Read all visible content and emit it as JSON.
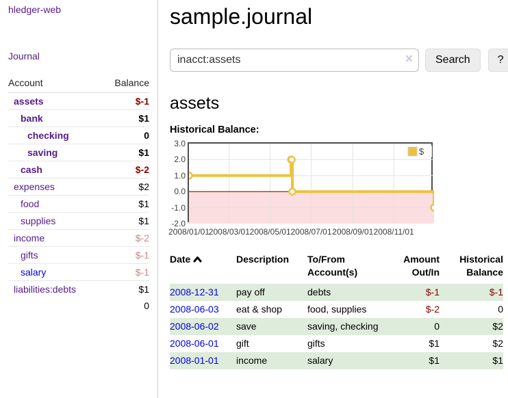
{
  "sidebar": {
    "brand": "hledger-web",
    "nav": {
      "journal_label": "Journal"
    },
    "accounts_table": {
      "headers": {
        "account": "Account",
        "balance": "Balance"
      },
      "rows": [
        {
          "name": "assets",
          "indent": 1,
          "bold": true,
          "balance": "$-1",
          "balance_style": "neg-strong"
        },
        {
          "name": "bank",
          "indent": 2,
          "bold": true,
          "balance": "$1"
        },
        {
          "name": "checking",
          "indent": 3,
          "bold": true,
          "balance": "0"
        },
        {
          "name": "saving",
          "indent": 3,
          "bold": true,
          "balance": "$1"
        },
        {
          "name": "cash",
          "indent": 2,
          "bold": true,
          "balance": "$-2",
          "balance_style": "neg-strong"
        },
        {
          "name": "expenses",
          "indent": 1,
          "bold": false,
          "balance": "$2"
        },
        {
          "name": "food",
          "indent": 2,
          "bold": false,
          "balance": "$1"
        },
        {
          "name": "supplies",
          "indent": 2,
          "bold": false,
          "balance": "$1"
        },
        {
          "name": "income",
          "indent": 1,
          "bold": false,
          "balance": "$-2",
          "balance_style": "neg-soft"
        },
        {
          "name": "gifts",
          "indent": 2,
          "bold": false,
          "balance": "$-1",
          "balance_style": "neg-soft"
        },
        {
          "name": "salary",
          "indent": 2,
          "bold": false,
          "link_style": "blue",
          "balance": "$-1",
          "balance_style": "neg-soft"
        },
        {
          "name": "liabilities:debts",
          "indent": 1,
          "bold": false,
          "balance": "$1"
        }
      ],
      "total": "0"
    }
  },
  "header": {
    "title": "sample.journal"
  },
  "search": {
    "query": "inacct:assets",
    "clear_icon": "×",
    "search_label": "Search",
    "help_label": "?"
  },
  "account_page": {
    "title": "assets",
    "chart_label": "Historical Balance:"
  },
  "chart_data": {
    "type": "line",
    "step": true,
    "title": "Historical Balance:",
    "series": [
      {
        "name": "$",
        "color": "#edc240",
        "points": [
          {
            "x": "2008-01-01",
            "y": 1
          },
          {
            "x": "2008-06-01",
            "y": 2
          },
          {
            "x": "2008-06-02",
            "y": 2
          },
          {
            "x": "2008-06-03",
            "y": 0
          },
          {
            "x": "2008-12-31",
            "y": -1
          }
        ]
      }
    ],
    "xlim": [
      "2008-01-01",
      "2008-12-31"
    ],
    "ylim": [
      -2,
      3
    ],
    "y_ticks": [
      3,
      2,
      1,
      0,
      -1,
      -2
    ],
    "x_ticks": [
      {
        "label": "2008/01/01",
        "date": "2008-01-01"
      },
      {
        "label": "2008/03/01",
        "date": "2008-03-01"
      },
      {
        "label": "2008/05/01",
        "date": "2008-05-01"
      },
      {
        "label": "2008/07/01",
        "date": "2008-07-01"
      },
      {
        "label": "2008/09/01",
        "date": "2008-09-01"
      },
      {
        "label": "2008/11/01",
        "date": "2008-11-01"
      }
    ],
    "legend": {
      "label": "$",
      "position": "top-right"
    },
    "grid": true,
    "grid_color": "#e3e3e3",
    "negative_region_color": "#fbdee0",
    "zero_line_color": "#a40000",
    "plot_border_color": "#4d4d4d"
  },
  "register_table": {
    "headers": {
      "date": "Date",
      "description": "Description",
      "accounts": "To/From Account(s)",
      "amount": "Amount Out/In",
      "balance": "Historical Balance"
    },
    "sort": {
      "column": "date",
      "direction": "asc"
    },
    "rows": [
      {
        "date": "2008-12-31",
        "description": "pay off",
        "accounts": "debts",
        "amount": "$-1",
        "amount_style": "neg",
        "balance": "$-1",
        "balance_style": "neg",
        "shade": true
      },
      {
        "date": "2008-06-03",
        "description": "eat & shop",
        "accounts": "food, supplies",
        "amount": "$-2",
        "amount_style": "neg",
        "balance": "0",
        "shade": false
      },
      {
        "date": "2008-06-02",
        "description": "save",
        "accounts": "saving, checking",
        "amount": "0",
        "balance": "$2",
        "shade": true
      },
      {
        "date": "2008-06-01",
        "description": "gift",
        "accounts": "gifts",
        "amount": "$1",
        "balance": "$2",
        "shade": false
      },
      {
        "date": "2008-01-01",
        "description": "income",
        "accounts": "salary",
        "amount": "$1",
        "balance": "$1",
        "shade": true
      }
    ]
  }
}
